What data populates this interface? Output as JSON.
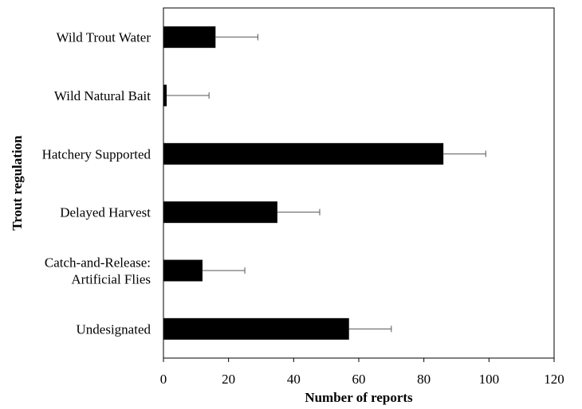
{
  "chart_data": {
    "type": "bar",
    "orientation": "horizontal",
    "title": "",
    "xlabel": "Number of reports",
    "ylabel": "Trout regulation",
    "categories": [
      [
        "Wild Trout Water"
      ],
      [
        "Wild Natural Bait"
      ],
      [
        "Hatchery Supported"
      ],
      [
        "Delayed Harvest"
      ],
      [
        "Catch-and-Release:",
        "Artificial Flies"
      ],
      [
        "Undesignated"
      ]
    ],
    "values": [
      16,
      1,
      86,
      35,
      12,
      57
    ],
    "error": [
      13,
      13,
      13,
      13,
      13,
      13
    ],
    "xlim": [
      0,
      120
    ],
    "xticks": [
      "0",
      "20",
      "40",
      "60",
      "80",
      "100",
      "120"
    ],
    "grid": false,
    "legend": "none",
    "bar_color": "#000000",
    "error_color": "#555555"
  }
}
